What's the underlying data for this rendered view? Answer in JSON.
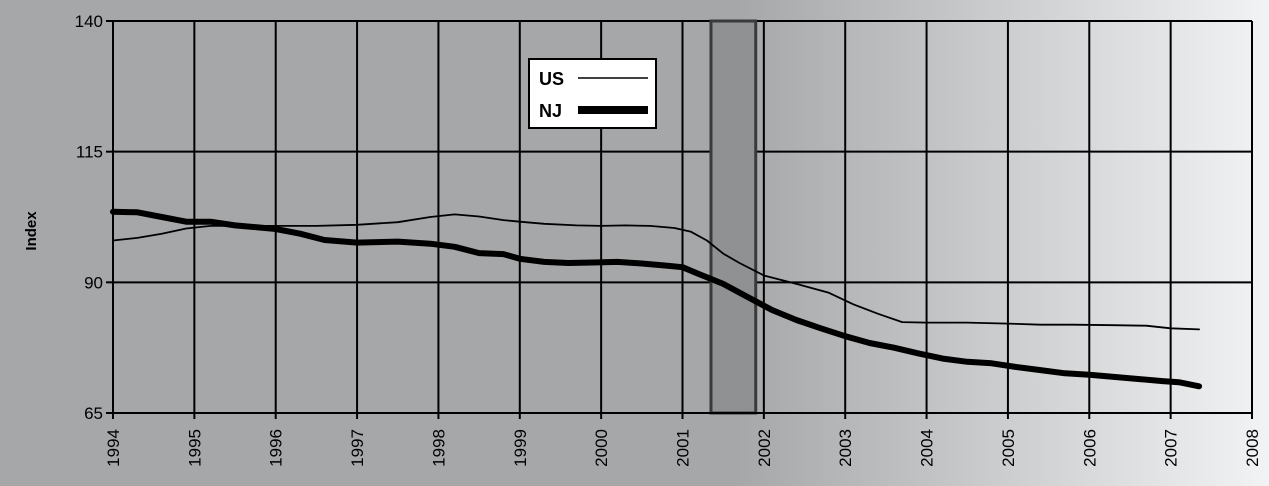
{
  "chart_data": {
    "type": "line",
    "title": "",
    "xlabel": "",
    "ylabel": "Index",
    "xlim": [
      1994,
      2008
    ],
    "ylim": [
      65,
      140
    ],
    "yticks": [
      65,
      90,
      115,
      140
    ],
    "xticks": [
      "1994",
      "1995",
      "1996",
      "1997",
      "1998",
      "1999",
      "2000",
      "2001",
      "2002",
      "2003",
      "2004",
      "2005",
      "2006",
      "2007",
      "2008"
    ],
    "grid": true,
    "legend": {
      "placement": "top-center",
      "entries": [
        {
          "name": "US",
          "style": "thin"
        },
        {
          "name": "NJ",
          "style": "thick"
        }
      ]
    },
    "shaded_region": {
      "x_start": 2001.35,
      "x_end": 2001.9,
      "label": ""
    },
    "background_gradient": [
      "#a5a7a9",
      "#f2f3f4"
    ],
    "series": [
      {
        "name": "US",
        "points": [
          [
            1994.0,
            98
          ],
          [
            1994.3,
            98.5
          ],
          [
            1994.6,
            99.3
          ],
          [
            1994.9,
            100.3
          ],
          [
            1995.2,
            100.8
          ],
          [
            1995.5,
            100.8
          ],
          [
            1996.0,
            100.8
          ],
          [
            1996.5,
            100.8
          ],
          [
            1997.0,
            101
          ],
          [
            1997.5,
            101.5
          ],
          [
            1997.9,
            102.5
          ],
          [
            1998.2,
            103
          ],
          [
            1998.5,
            102.6
          ],
          [
            1998.8,
            101.9
          ],
          [
            1999.0,
            101.6
          ],
          [
            1999.3,
            101.2
          ],
          [
            1999.7,
            100.9
          ],
          [
            2000.0,
            100.8
          ],
          [
            2000.3,
            100.9
          ],
          [
            2000.6,
            100.8
          ],
          [
            2000.9,
            100.4
          ],
          [
            2001.1,
            99.7
          ],
          [
            2001.3,
            98
          ],
          [
            2001.5,
            95.5
          ],
          [
            2001.7,
            93.7
          ],
          [
            2002.0,
            91.3
          ],
          [
            2002.4,
            89.7
          ],
          [
            2002.8,
            88
          ],
          [
            2003.1,
            85.8
          ],
          [
            2003.4,
            84
          ],
          [
            2003.7,
            82.4
          ],
          [
            2004.0,
            82.3
          ],
          [
            2004.5,
            82.3
          ],
          [
            2005.0,
            82.1
          ],
          [
            2005.4,
            81.9
          ],
          [
            2005.8,
            81.9
          ],
          [
            2006.3,
            81.8
          ],
          [
            2006.7,
            81.7
          ],
          [
            2007.0,
            81.2
          ],
          [
            2007.35,
            81
          ]
        ]
      },
      {
        "name": "NJ",
        "points": [
          [
            1994.0,
            103.5
          ],
          [
            1994.3,
            103.4
          ],
          [
            1994.6,
            102.5
          ],
          [
            1994.9,
            101.6
          ],
          [
            1995.2,
            101.6
          ],
          [
            1995.5,
            100.9
          ],
          [
            1995.8,
            100.5
          ],
          [
            1996.0,
            100.2
          ],
          [
            1996.3,
            99.3
          ],
          [
            1996.6,
            98.1
          ],
          [
            1997.0,
            97.6
          ],
          [
            1997.5,
            97.8
          ],
          [
            1997.9,
            97.4
          ],
          [
            1998.2,
            96.8
          ],
          [
            1998.5,
            95.6
          ],
          [
            1998.8,
            95.4
          ],
          [
            1999.0,
            94.5
          ],
          [
            1999.3,
            93.9
          ],
          [
            1999.6,
            93.7
          ],
          [
            1999.9,
            93.8
          ],
          [
            2000.2,
            93.9
          ],
          [
            2000.5,
            93.6
          ],
          [
            2000.8,
            93.2
          ],
          [
            2001.0,
            92.9
          ],
          [
            2001.2,
            91.6
          ],
          [
            2001.5,
            89.7
          ],
          [
            2001.8,
            87.2
          ],
          [
            2002.1,
            84.7
          ],
          [
            2002.4,
            82.8
          ],
          [
            2002.7,
            81.2
          ],
          [
            2003.0,
            79.7
          ],
          [
            2003.3,
            78.4
          ],
          [
            2003.6,
            77.5
          ],
          [
            2003.9,
            76.4
          ],
          [
            2004.2,
            75.4
          ],
          [
            2004.5,
            74.8
          ],
          [
            2004.8,
            74.5
          ],
          [
            2005.1,
            73.8
          ],
          [
            2005.4,
            73.2
          ],
          [
            2005.7,
            72.6
          ],
          [
            2006.0,
            72.3
          ],
          [
            2006.3,
            71.9
          ],
          [
            2006.6,
            71.5
          ],
          [
            2006.9,
            71.1
          ],
          [
            2007.1,
            70.9
          ],
          [
            2007.35,
            70.1
          ]
        ]
      }
    ]
  }
}
